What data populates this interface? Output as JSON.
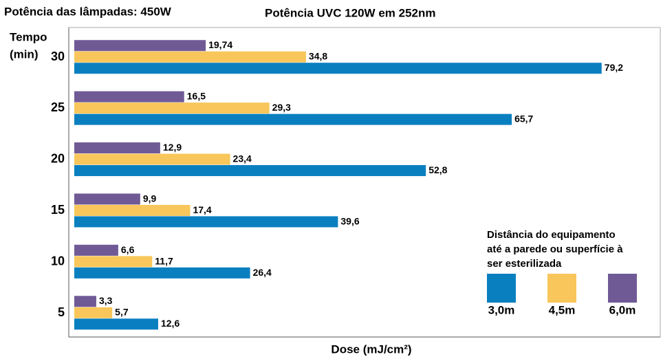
{
  "chart_data": {
    "type": "hbar",
    "title": "Potência das lâmpadas: 450W",
    "subtitle": "Potência UVC 120W em 252nm",
    "y_label": [
      "Tempo",
      "(min)"
    ],
    "x_label": "Dose (mJ/cm²)",
    "categories": [
      "30",
      "25",
      "20",
      "15",
      "10",
      "5"
    ],
    "xlim": [
      0,
      88
    ],
    "legend_title": [
      "Distância do equipamento",
      "até a parede ou superfície à",
      "ser esterilizada"
    ],
    "series": [
      {
        "name": "3,0m",
        "color": "#0a7fc0",
        "values": [
          79.2,
          65.7,
          52.8,
          39.6,
          26.4,
          12.6
        ],
        "value_labels": [
          "79,2",
          "65,7",
          "52,8",
          "39,6",
          "26,4",
          "12,6"
        ]
      },
      {
        "name": "4,5m",
        "color": "#f8c65a",
        "values": [
          34.8,
          29.3,
          23.4,
          17.4,
          11.7,
          5.7
        ],
        "value_labels": [
          "34,8",
          "29,3",
          "23,4",
          "17,4",
          "11,7",
          "5,7"
        ]
      },
      {
        "name": "6,0m",
        "color": "#705a96",
        "values": [
          19.74,
          16.5,
          12.9,
          9.9,
          6.6,
          3.3
        ],
        "value_labels": [
          "19,74",
          "16,5",
          "12,9",
          "9,9",
          "6,6",
          "3,3"
        ]
      }
    ]
  }
}
